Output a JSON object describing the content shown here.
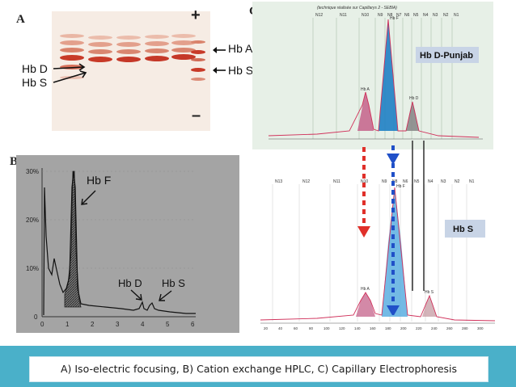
{
  "panel_a": {
    "letter": "A",
    "plus": "+",
    "minus": "–",
    "labels": {
      "hb_d": "Hb D",
      "hb_s": "Hb S",
      "hb_a": "Hb A",
      "hb_s_right": "Hb S"
    }
  },
  "panel_b": {
    "letter": "B",
    "y_ticks": [
      "30%",
      "20%",
      "10%",
      "0"
    ],
    "x_ticks": [
      "0",
      "1",
      "2",
      "3",
      "4",
      "5",
      "6"
    ],
    "peak_labels": {
      "hb_f": "Hb F",
      "hb_d": "Hb D",
      "hb_s": "Hb S"
    }
  },
  "panel_c": {
    "letter": "C",
    "top_label": "Hb D-Punjab",
    "bottom_label": "Hb S",
    "top_header": "(technique réalisée sur Capillarys 2 - SEBIA)",
    "top_peaks": {
      "hb_a": "Hb A",
      "hb_d": "Hb D",
      "hb_f": "Hb F"
    },
    "bottom_peaks": {
      "hb_a": "Hb A",
      "hb_s": "Hb S",
      "hb_f": "Hb F"
    },
    "top_zones": [
      "N12",
      "N11",
      "N10",
      "N9",
      "N8",
      "N7",
      "N6",
      "N5",
      "N4",
      "N3",
      "N2",
      "N1"
    ],
    "bottom_zones": [
      "N13",
      "N12",
      "N11",
      "N10",
      "N9",
      "N8",
      "N6",
      "N5",
      "N4",
      "N3",
      "N2",
      "N1"
    ],
    "bottom_x_ticks": [
      "20",
      "40",
      "60",
      "80",
      "100",
      "120",
      "140",
      "160",
      "180",
      "200",
      "220",
      "240",
      "260",
      "280",
      "300"
    ]
  },
  "caption": "A) Iso-electric focusing, B) Cation exchange HPLC, C) Capillary Electrophoresis",
  "colors": {
    "band_red": "#c83a28",
    "teal": "#4ab0c9",
    "peak_blue": "#1f7fc4",
    "peak_pink": "#c4628a",
    "arrow_red": "#e0302a",
    "arrow_blue": "#2050c8"
  }
}
